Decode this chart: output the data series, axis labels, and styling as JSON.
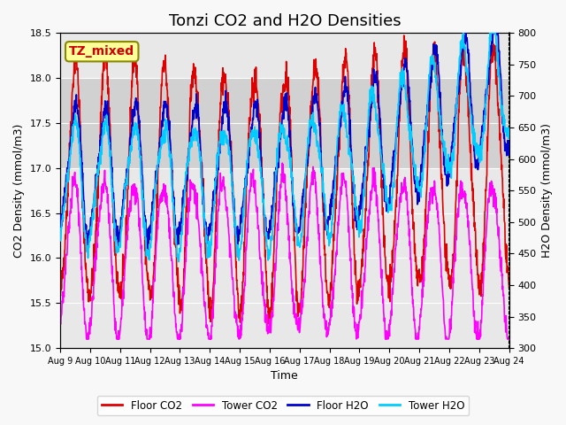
{
  "title": "Tonzi CO2 and H2O Densities",
  "xlabel": "Time",
  "ylabel_left": "CO2 Density (mmol/m3)",
  "ylabel_right": "H2O Density (mmol/m3)",
  "xlim_start": 0,
  "xlim_end": 15,
  "ylim_left": [
    15.0,
    18.5
  ],
  "ylim_right": [
    300,
    800
  ],
  "xtick_labels": [
    "Aug 9",
    "Aug 10",
    "Aug 11",
    "Aug 12",
    "Aug 13",
    "Aug 14",
    "Aug 15",
    "Aug 16",
    "Aug 17",
    "Aug 18",
    "Aug 19",
    "Aug 20",
    "Aug 21",
    "Aug 22",
    "Aug 23",
    "Aug 24"
  ],
  "shaded_region": [
    17.0,
    18.0
  ],
  "annotation_text": "TZ_mixed",
  "annotation_color": "#cc0000",
  "annotation_bg": "#ffff99",
  "annotation_border": "#888800",
  "line_colors": {
    "floor_co2": "#dd0000",
    "tower_co2": "#ff00ff",
    "floor_h2o": "#0000cc",
    "tower_h2o": "#00ccff"
  },
  "legend_labels": [
    "Floor CO2",
    "Tower CO2",
    "Floor H2O",
    "Tower H2O"
  ],
  "title_fontsize": 13
}
